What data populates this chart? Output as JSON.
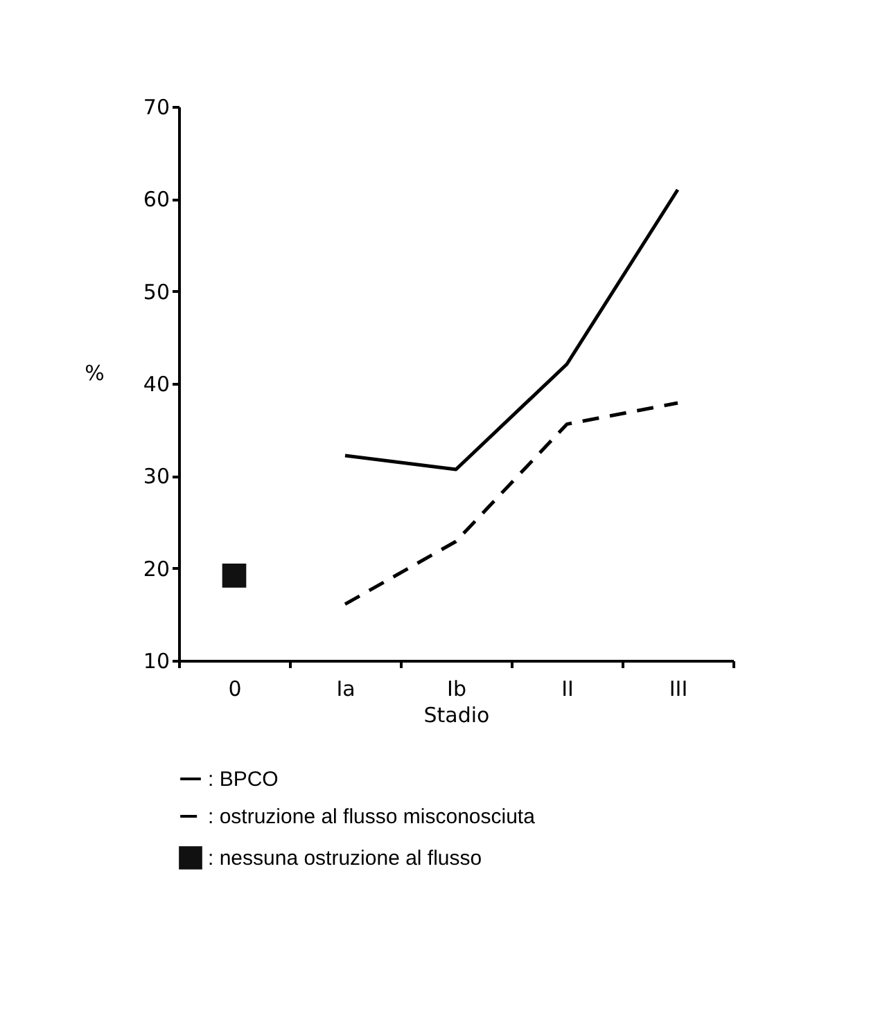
{
  "chart_data": {
    "type": "line",
    "xlabel": "Stadio",
    "ylabel": "%",
    "categories": [
      "0",
      "Ia",
      "Ib",
      "II",
      "III"
    ],
    "series": [
      {
        "name": ": BPCO",
        "color": "#000000",
        "line_style": "solid",
        "values": [
          null,
          32.2,
          30.7,
          42.1,
          61
        ]
      },
      {
        "name": ": ostruzione al flusso misconosciuta",
        "color": "#000000",
        "line_style": "dashed",
        "values": [
          null,
          16.1,
          22.9,
          35.6,
          37.9
        ]
      },
      {
        "name": ": nessuna ostruzione al flusso",
        "color": "#111111",
        "type": "scatter",
        "marker": "square",
        "values": [
          19.2,
          null,
          null,
          null,
          null
        ]
      }
    ],
    "ylim": [
      10,
      70
    ],
    "yticks": [
      10,
      20,
      30,
      40,
      50,
      60,
      70
    ],
    "legend": "bottom left"
  }
}
